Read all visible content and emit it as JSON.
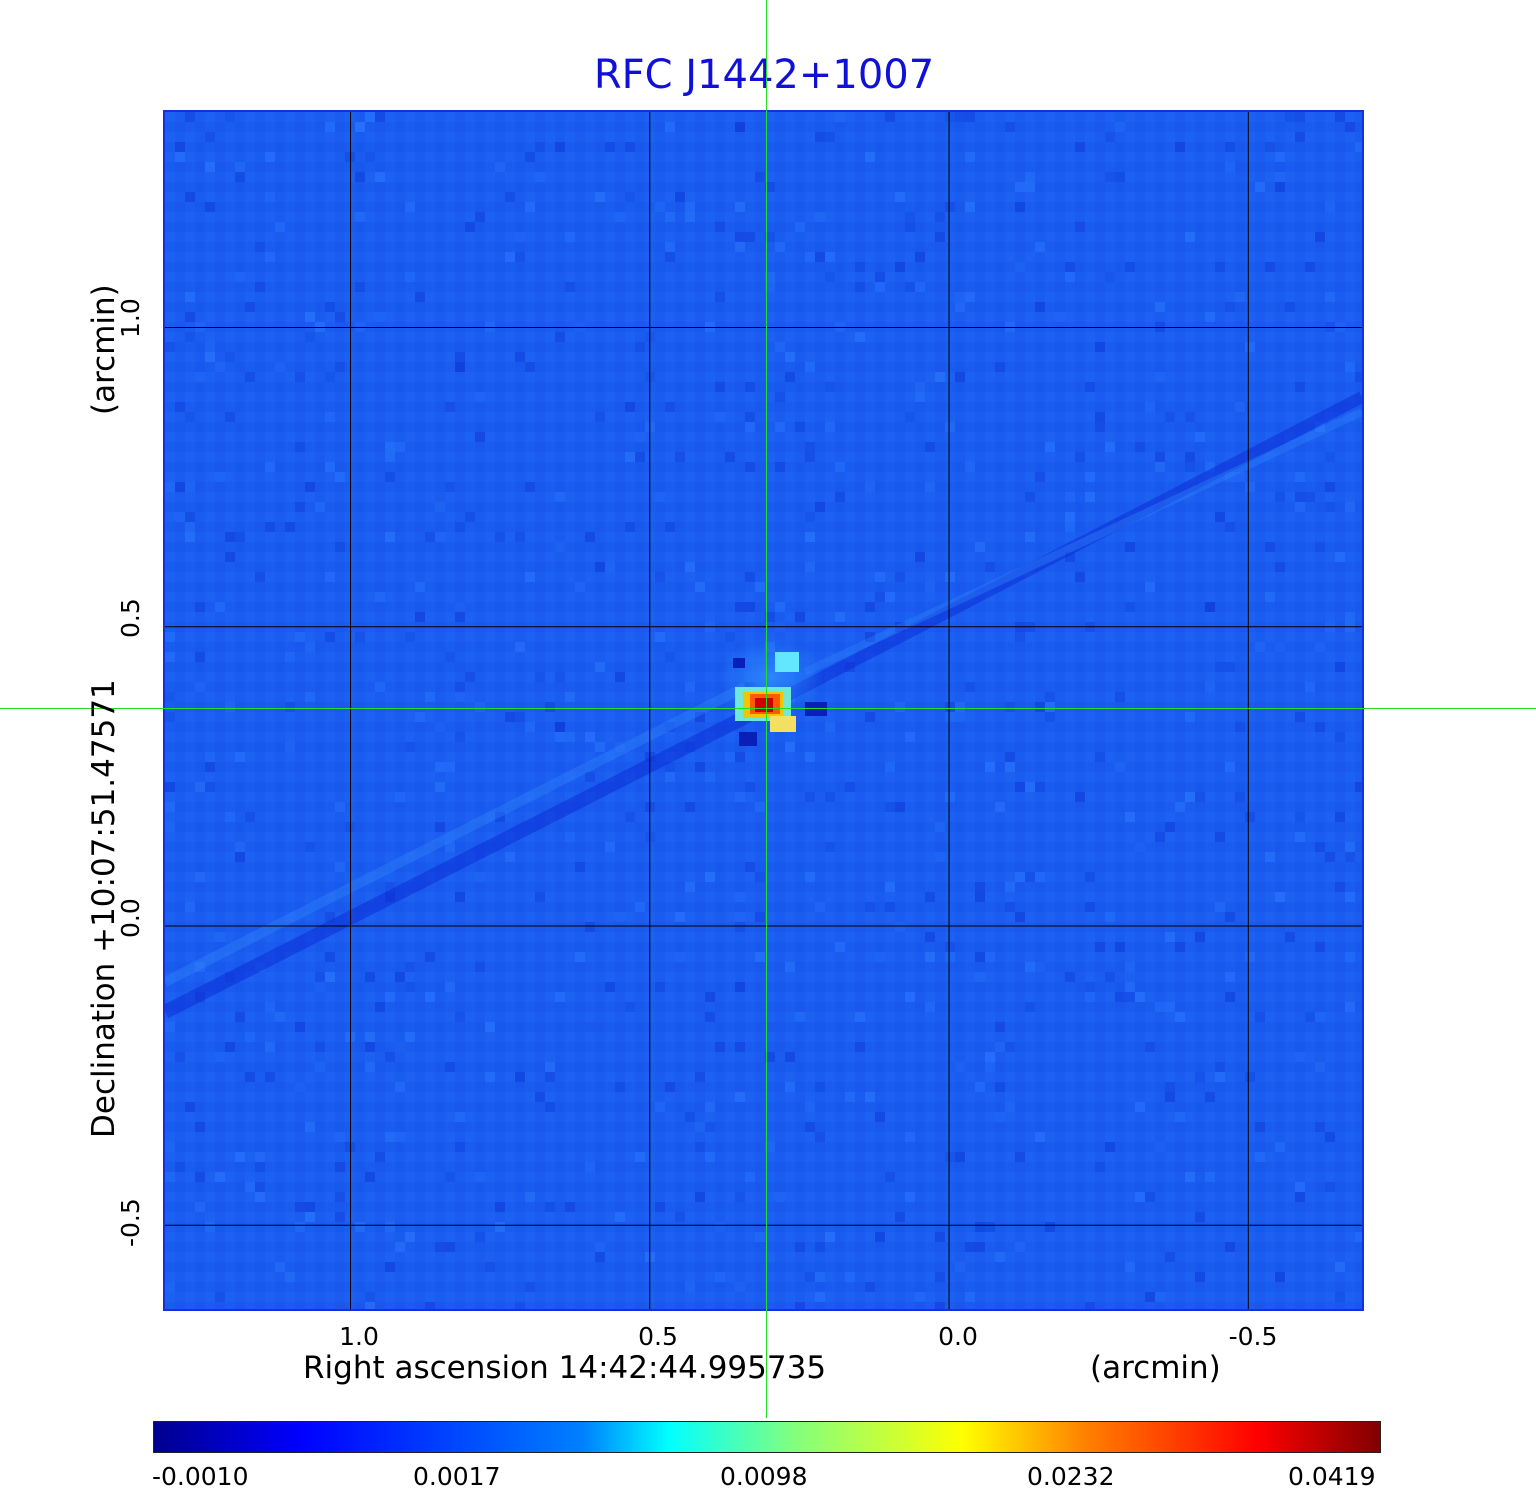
{
  "chart_data": {
    "type": "heatmap",
    "title": "RFC J1442+1007",
    "xlabel": "Right ascension  14:42:44.995735",
    "xunit": "(arcmin)",
    "ylabel": "Declination  +10:07:51.47571",
    "yunit": "(arcmin)",
    "xlim": [
      1.31,
      -0.69
    ],
    "ylim": [
      -0.64,
      1.36
    ],
    "x_ticks": [
      "1.0",
      "0.5",
      "0.0",
      "-0.5"
    ],
    "x_tick_values": [
      1.0,
      0.5,
      0.0,
      -0.5
    ],
    "y_ticks": [
      "1.0",
      "0.5",
      "0.0",
      "-0.5"
    ],
    "y_tick_values": [
      1.0,
      0.5,
      0.0,
      -0.5
    ],
    "grid": true,
    "crosshair": {
      "x": 0.31,
      "y": 0.36
    },
    "source_peak": {
      "x": 0.31,
      "y": 0.36,
      "value": 0.0419
    },
    "colorbar": {
      "colormap": "jet",
      "ticks": [
        "-0.0010",
        "0.0017",
        "0.0098",
        "0.0232",
        "0.0419"
      ],
      "tick_values": [
        -0.001,
        0.0017,
        0.0098,
        0.0232,
        0.0419
      ],
      "location": "bottom"
    },
    "colors": {
      "background": "#1a5cf0",
      "title": "#1010d8",
      "crosshair": "#22dd22",
      "grid": "#000000"
    }
  }
}
